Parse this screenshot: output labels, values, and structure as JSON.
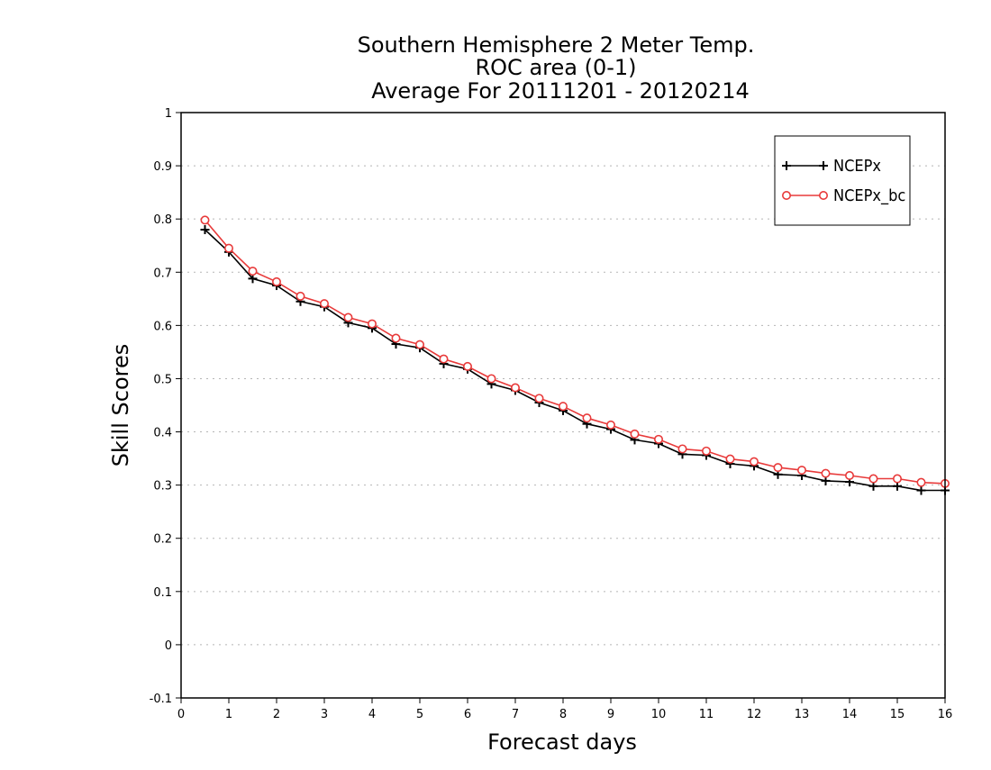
{
  "chart_data": {
    "type": "line",
    "title_lines": [
      "Southern Hemisphere 2 Meter Temp.",
      "ROC area (0-1)",
      "Average For 20111201 - 20120214"
    ],
    "xlabel": "Forecast days",
    "ylabel": "Skill Scores",
    "xlim": [
      0,
      16
    ],
    "ylim": [
      -0.1,
      1
    ],
    "x_ticks": [
      "0",
      "1",
      "2",
      "3",
      "4",
      "5",
      "6",
      "7",
      "8",
      "9",
      "10",
      "11",
      "12",
      "13",
      "14",
      "15",
      "16"
    ],
    "y_ticks": [
      "-0.1",
      "0",
      "0.1",
      "0.2",
      "0.3",
      "0.4",
      "0.5",
      "0.6",
      "0.7",
      "0.8",
      "0.9",
      "1"
    ],
    "grid": "horizontal-dotted",
    "legend_position": "top-right",
    "x": [
      0.5,
      1,
      1.5,
      2,
      2.5,
      3,
      3.5,
      4,
      4.5,
      5,
      5.5,
      6,
      6.5,
      7,
      7.5,
      8,
      8.5,
      9,
      9.5,
      10,
      10.5,
      11,
      11.5,
      12,
      12.5,
      13,
      13.5,
      14,
      14.5,
      15,
      15.5,
      16
    ],
    "series": [
      {
        "name": "NCEPx",
        "color": "#000000",
        "marker": "plus",
        "values": [
          0.78,
          0.738,
          0.688,
          0.675,
          0.645,
          0.635,
          0.605,
          0.595,
          0.565,
          0.558,
          0.528,
          0.518,
          0.49,
          0.478,
          0.455,
          0.44,
          0.415,
          0.405,
          0.385,
          0.378,
          0.358,
          0.356,
          0.34,
          0.336,
          0.32,
          0.318,
          0.308,
          0.306,
          0.298,
          0.298,
          0.29,
          0.29
        ]
      },
      {
        "name": "NCEPx_bc",
        "color": "#e83a3a",
        "marker": "circle",
        "values": [
          0.798,
          0.745,
          0.702,
          0.682,
          0.655,
          0.641,
          0.615,
          0.603,
          0.576,
          0.564,
          0.537,
          0.523,
          0.5,
          0.483,
          0.463,
          0.448,
          0.426,
          0.413,
          0.396,
          0.386,
          0.368,
          0.364,
          0.349,
          0.344,
          0.333,
          0.328,
          0.322,
          0.318,
          0.312,
          0.312,
          0.305,
          0.303
        ]
      }
    ]
  }
}
